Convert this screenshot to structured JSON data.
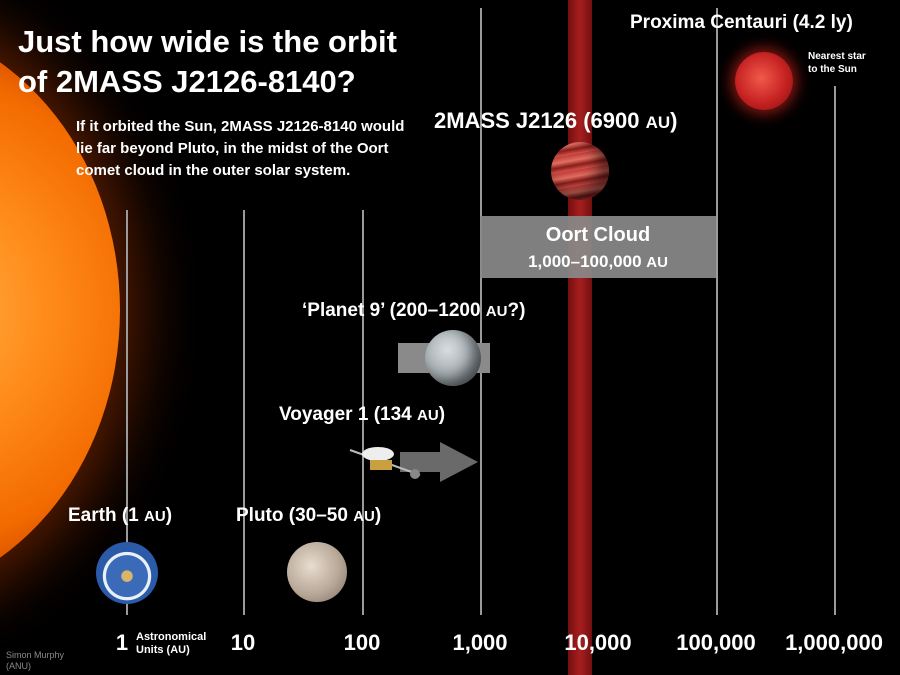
{
  "title_line1": "Just how wide is the orbit",
  "title_line2": "of 2MASS J2126-8140?",
  "intro": "If it orbited the Sun, 2MASS J2126-8140 would lie far beyond Pluto, in the midst of the Oort comet cloud in the outer solar system.",
  "proxima": {
    "label": "Proxima Centauri (4.2 ly)",
    "note_line1": "Nearest star",
    "note_line2": "to the Sun"
  },
  "j2126": {
    "name": "2MASS J2126 (6900 ",
    "unit": "AU",
    "close": ")"
  },
  "oort": {
    "label": "Oort Cloud",
    "range": "1,000–100,000 ",
    "unit": "AU"
  },
  "planet9": {
    "name": "‘Planet 9’ (200–1200 ",
    "unit": "AU",
    "close": "?)"
  },
  "voyager": {
    "name": "Voyager 1 (134 ",
    "unit": "AU",
    "close": ")"
  },
  "earth": {
    "name": "Earth (1 ",
    "unit": "AU",
    "close": ")"
  },
  "pluto": {
    "name": "Pluto (30–50 ",
    "unit": "AU",
    "close": ")"
  },
  "axis": {
    "ticks": [
      "1",
      "10",
      "100",
      "1,000",
      "10,000",
      "100,000",
      "1,000,000"
    ],
    "unit_line1": "Astronomical",
    "unit_line2": "Units (AU)"
  },
  "credit": {
    "line1": "Simon Murphy",
    "line2": "(ANU)"
  },
  "colors": {
    "background": "#000000",
    "highlight_band": "#b02020",
    "oort_box": "#8a8a8a"
  }
}
